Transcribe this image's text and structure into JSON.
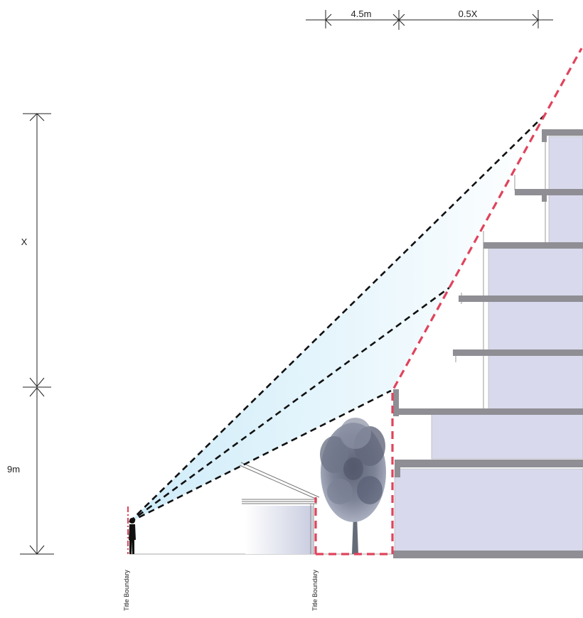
{
  "dimensions": {
    "setback": "4.5m",
    "setback_ratio": "0.5X",
    "height_x": "X",
    "height_base": "9m"
  },
  "boundaries": {
    "left": "Title Boundary",
    "right": "Title Boundary"
  }
}
